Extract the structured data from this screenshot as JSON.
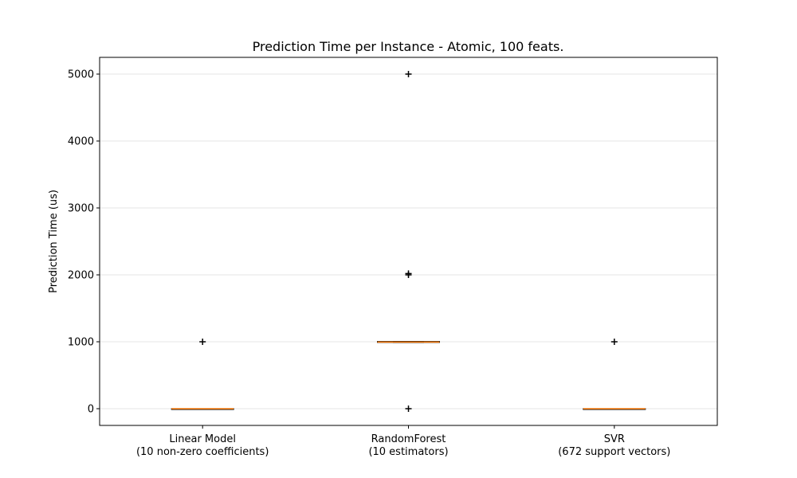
{
  "chart_data": {
    "type": "box",
    "title": "Prediction Time per Instance - Atomic, 100 feats.",
    "xlabel": "",
    "ylabel": "Prediction Time (us)",
    "ylim": [
      -250,
      5250
    ],
    "yticks": [
      0,
      1000,
      2000,
      3000,
      4000,
      5000
    ],
    "grid": "y",
    "categories": [
      [
        "Linear Model",
        "(10 non-zero coefficients)"
      ],
      [
        "RandomForest",
        "(10 estimators)"
      ],
      [
        "SVR",
        "(672 support vectors)"
      ]
    ],
    "boxes": [
      {
        "q1": 0,
        "median": 0,
        "q3": 0,
        "whisker_low": 0,
        "whisker_high": 0,
        "outliers": [
          1000
        ]
      },
      {
        "q1": 990,
        "median": 995,
        "q3": 1005,
        "whisker_low": 990,
        "whisker_high": 1005,
        "outliers": [
          0,
          2000,
          2020,
          5000
        ]
      },
      {
        "q1": 0,
        "median": 0,
        "q3": 0,
        "whisker_low": 0,
        "whisker_high": 0,
        "outliers": [
          1000
        ]
      }
    ],
    "colors": {
      "box": "#000000",
      "median": "#ff7f0e",
      "outlier": "#000000",
      "grid": "#e6e6e6"
    }
  }
}
